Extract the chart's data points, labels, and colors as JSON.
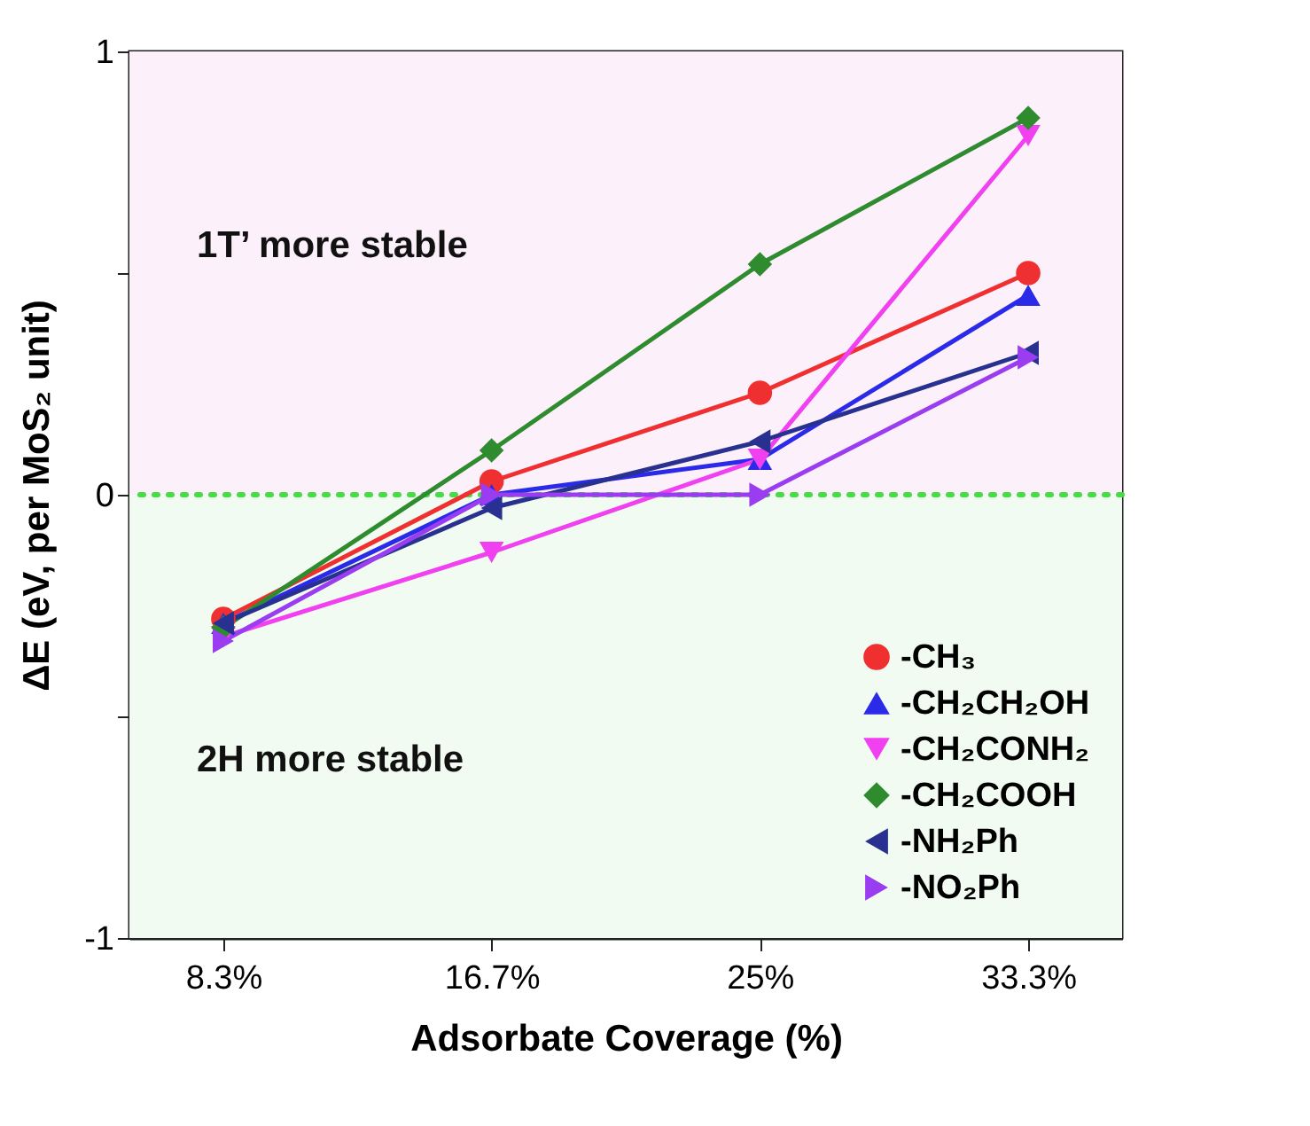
{
  "chart_data": {
    "type": "line",
    "xlabel": "Adsorbate Coverage (%)",
    "ylabel": "ΔE (eV, per MoS₂ unit)",
    "categories": [
      "8.3%",
      "16.7%",
      "25%",
      "33.3%"
    ],
    "ylim": [
      -1,
      1
    ],
    "yticks": [
      -1,
      {
        "value": -0.5,
        "label": null
      },
      0,
      {
        "value": 0.5,
        "label": null
      },
      1
    ],
    "series": [
      {
        "name": "-CH₃",
        "color": "#f03030",
        "marker": "circle",
        "values": [
          -0.28,
          0.03,
          0.23,
          0.5
        ]
      },
      {
        "name": "-CH₂CH₂OH",
        "color": "#2a2ae8",
        "marker": "triangle-up",
        "values": [
          -0.29,
          0.0,
          0.08,
          0.45
        ]
      },
      {
        "name": "-CH₂CONH₂",
        "color": "#f040f0",
        "marker": "triangle-down",
        "values": [
          -0.32,
          -0.13,
          0.08,
          0.81
        ]
      },
      {
        "name": "-CH₂COOH",
        "color": "#2e8b2e",
        "marker": "diamond",
        "values": [
          -0.3,
          0.1,
          0.52,
          0.85
        ]
      },
      {
        "name": "-NH₂Ph",
        "color": "#283090",
        "marker": "triangle-left",
        "values": [
          -0.29,
          -0.03,
          0.12,
          0.32
        ]
      },
      {
        "name": "-NO₂Ph",
        "color": "#9a3cf0",
        "marker": "triangle-right",
        "values": [
          -0.33,
          0.0,
          0.0,
          0.31
        ]
      }
    ],
    "bands": [
      {
        "axis": "y",
        "from": 0,
        "to": 1,
        "color": "#fcf0fb"
      },
      {
        "axis": "y",
        "from": -1,
        "to": 0,
        "color": "#f1fbf1"
      }
    ],
    "ref_lines": [
      {
        "axis": "y",
        "value": 0,
        "color": "#44dd44",
        "line_style": "dotted"
      }
    ],
    "annotations": [
      "1T’ more stable",
      "2H more stable"
    ],
    "legend": "bottom right",
    "grid": false
  }
}
